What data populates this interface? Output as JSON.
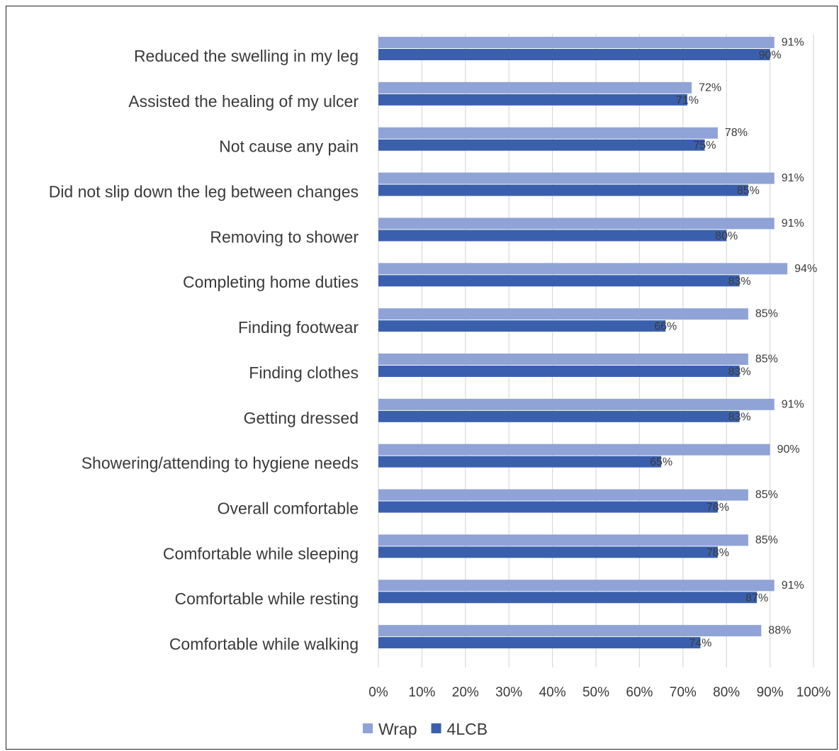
{
  "chart_data": {
    "type": "bar",
    "orientation": "horizontal",
    "title": "",
    "xlabel": "",
    "ylabel": "",
    "xlim": [
      0,
      100
    ],
    "x_ticks": [
      "0%",
      "10%",
      "20%",
      "30%",
      "40%",
      "50%",
      "60%",
      "70%",
      "80%",
      "90%",
      "100%"
    ],
    "grid": true,
    "legend_position": "bottom-left",
    "categories": [
      "Reduced the swelling in my leg",
      "Assisted the healing of my ulcer",
      "Not cause any pain",
      "Did not slip down the leg between changes",
      "Removing to shower",
      "Completing home duties",
      "Finding footwear",
      "Finding clothes",
      "Getting dressed",
      "Showering/attending to hygiene needs",
      "Overall comfortable",
      "Comfortable while sleeping",
      "Comfortable while resting",
      "Comfortable while walking"
    ],
    "series": [
      {
        "name": "Wrap",
        "color": "#8fa3d6",
        "values": [
          91,
          72,
          78,
          91,
          91,
          94,
          85,
          85,
          91,
          90,
          85,
          85,
          91,
          88
        ],
        "labels": [
          "91%",
          "72%",
          "78%",
          "91%",
          "91%",
          "94%",
          "85%",
          "85%",
          "91%",
          "90%",
          "85%",
          "85%",
          "91%",
          "88%"
        ]
      },
      {
        "name": "4LCB",
        "color": "#3a60ad",
        "values": [
          90,
          71,
          75,
          85,
          80,
          83,
          66,
          83,
          83,
          65,
          78,
          78,
          87,
          74
        ],
        "labels": [
          "90%",
          "71%",
          "75%",
          "85%",
          "80%",
          "83%",
          "66%",
          "83%",
          "83%",
          "65%",
          "78%",
          "78%",
          "87%",
          "74%"
        ]
      }
    ]
  }
}
